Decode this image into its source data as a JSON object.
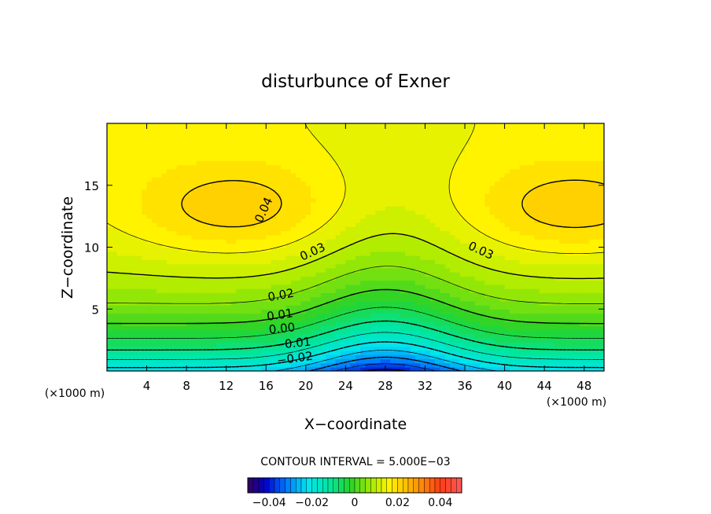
{
  "chart_data": {
    "type": "heatmap",
    "title": "disturbunce of Exner",
    "xlabel": "X−coordinate",
    "ylabel": "Z−coordinate",
    "x_unit_left": "(×1000 m)",
    "x_unit_right": "(×1000 m)",
    "xlim": [
      0,
      50
    ],
    "ylim": [
      0,
      20
    ],
    "x_ticks": [
      "4",
      "8",
      "12",
      "16",
      "20",
      "24",
      "28",
      "32",
      "36",
      "40",
      "44",
      "48"
    ],
    "x_tick_values": [
      4,
      8,
      12,
      16,
      20,
      24,
      28,
      32,
      36,
      40,
      44,
      48
    ],
    "y_ticks": [
      "5",
      "10",
      "15"
    ],
    "y_tick_values": [
      5,
      10,
      15
    ],
    "contour_labels": [
      {
        "text": "0.04",
        "x": 15.8,
        "y": 13.0,
        "angle": -65
      },
      {
        "text": "0.03",
        "x": 20.7,
        "y": 9.6,
        "angle": -25
      },
      {
        "text": "0.03",
        "x": 37.6,
        "y": 9.7,
        "angle": 25
      },
      {
        "text": "0.02",
        "x": 17.5,
        "y": 6.1,
        "angle": -10
      },
      {
        "text": "0.01",
        "x": 17.4,
        "y": 4.5,
        "angle": -8
      },
      {
        "text": "0.00",
        "x": 17.6,
        "y": 3.4,
        "angle": -6
      },
      {
        "text": "−0.01",
        "x": 18.7,
        "y": 2.2,
        "angle": -6
      },
      {
        "text": "−0.02",
        "x": 18.9,
        "y": 1.0,
        "angle": -8
      }
    ],
    "contour_interval_text": "CONTOUR INTERVAL = 5.000E−03",
    "colorbar": {
      "min": -0.05,
      "max": 0.05,
      "tick_labels": [
        "−0.04",
        "−0.02",
        "0",
        "0.02",
        "0.04"
      ],
      "tick_values": [
        -0.04,
        -0.02,
        0,
        0.02,
        0.04
      ]
    },
    "grid": false
  }
}
